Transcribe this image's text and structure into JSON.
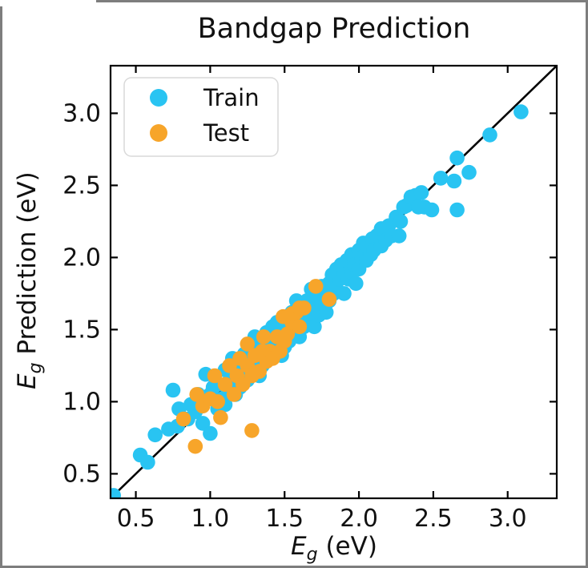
{
  "figure": {
    "title": "Bandgap Prediction",
    "border_color": "#7e7e7e",
    "background": "#ffffff",
    "text_color": "#111111"
  },
  "labels": {
    "e_symbol": "E",
    "e_sub": "g",
    "ylabel_rest": " Prediction (eV)",
    "xlabel_rest": " (eV)"
  },
  "legend": {
    "position": "upper left",
    "border_color": "#d9d9d9",
    "entries": [
      {
        "label": "Train",
        "color": "#29c4f2"
      },
      {
        "label": "Test",
        "color": "#f7a52a"
      }
    ]
  },
  "chart_data": {
    "type": "scatter",
    "title": "Bandgap Prediction",
    "xlabel": "E_g (eV)",
    "ylabel": "E_g Prediction (eV)",
    "xlim": [
      0.33,
      3.33
    ],
    "ylim": [
      0.33,
      3.33
    ],
    "xticks": [
      0.5,
      1.0,
      1.5,
      2.0,
      2.5,
      3.0
    ],
    "yticks": [
      0.5,
      1.0,
      1.5,
      2.0,
      2.5,
      3.0
    ],
    "grid": false,
    "legend_position": "upper left",
    "reference_line": {
      "type": "y=x",
      "color": "#000000",
      "from": 0.33,
      "to": 3.33
    },
    "series": [
      {
        "name": "Train",
        "color": "#29c4f2",
        "points": [
          [
            0.35,
            0.35
          ],
          [
            0.53,
            0.63
          ],
          [
            0.58,
            0.58
          ],
          [
            0.63,
            0.77
          ],
          [
            0.72,
            0.81
          ],
          [
            0.75,
            1.08
          ],
          [
            0.79,
            0.95
          ],
          [
            0.87,
            0.98
          ],
          [
            0.78,
            0.83
          ],
          [
            0.85,
            0.88
          ],
          [
            0.9,
            0.93
          ],
          [
            0.92,
            1.05
          ],
          [
            0.95,
            0.85
          ],
          [
            0.97,
            1.19
          ],
          [
            1.0,
            0.78
          ],
          [
            1.0,
            1.05
          ],
          [
            1.02,
            1.1
          ],
          [
            1.05,
            1.12
          ],
          [
            1.05,
            0.95
          ],
          [
            1.08,
            1.02
          ],
          [
            1.1,
            1.22
          ],
          [
            1.1,
            0.98
          ],
          [
            1.12,
            1.08
          ],
          [
            1.15,
            1.15
          ],
          [
            1.15,
            1.3
          ],
          [
            1.17,
            1.05
          ],
          [
            1.18,
            1.22
          ],
          [
            1.2,
            1.1
          ],
          [
            1.2,
            1.28
          ],
          [
            1.22,
            1.2
          ],
          [
            1.23,
            1.33
          ],
          [
            1.25,
            1.15
          ],
          [
            1.27,
            1.27
          ],
          [
            1.28,
            1.38
          ],
          [
            1.3,
            1.22
          ],
          [
            1.3,
            1.45
          ],
          [
            1.32,
            1.3
          ],
          [
            1.33,
            1.18
          ],
          [
            1.35,
            1.4
          ],
          [
            1.35,
            1.25
          ],
          [
            1.37,
            1.32
          ],
          [
            1.38,
            1.48
          ],
          [
            1.4,
            1.3
          ],
          [
            1.4,
            1.42
          ],
          [
            1.42,
            1.52
          ],
          [
            1.43,
            1.35
          ],
          [
            1.45,
            1.4
          ],
          [
            1.45,
            1.55
          ],
          [
            1.47,
            1.45
          ],
          [
            1.48,
            1.32
          ],
          [
            1.5,
            1.5
          ],
          [
            1.5,
            1.38
          ],
          [
            1.52,
            1.55
          ],
          [
            1.53,
            1.42
          ],
          [
            1.55,
            1.62
          ],
          [
            1.55,
            1.48
          ],
          [
            1.57,
            1.52
          ],
          [
            1.58,
            1.7
          ],
          [
            1.6,
            1.58
          ],
          [
            1.6,
            1.45
          ],
          [
            1.62,
            1.65
          ],
          [
            1.63,
            1.52
          ],
          [
            1.65,
            1.7
          ],
          [
            1.65,
            1.55
          ],
          [
            1.67,
            1.62
          ],
          [
            1.68,
            1.78
          ],
          [
            1.7,
            1.65
          ],
          [
            1.7,
            1.52
          ],
          [
            1.72,
            1.72
          ],
          [
            1.73,
            1.6
          ],
          [
            1.75,
            1.8
          ],
          [
            1.75,
            1.68
          ],
          [
            1.77,
            1.75
          ],
          [
            1.78,
            1.62
          ],
          [
            1.8,
            1.82
          ],
          [
            1.8,
            1.7
          ],
          [
            1.82,
            1.88
          ],
          [
            1.83,
            1.75
          ],
          [
            1.85,
            1.92
          ],
          [
            1.85,
            1.78
          ],
          [
            1.87,
            1.85
          ],
          [
            1.88,
            1.95
          ],
          [
            1.9,
            1.88
          ],
          [
            1.9,
            1.75
          ],
          [
            1.92,
            1.98
          ],
          [
            1.93,
            1.85
          ],
          [
            1.95,
            2.02
          ],
          [
            1.95,
            1.9
          ],
          [
            1.97,
            1.95
          ],
          [
            1.98,
            1.82
          ],
          [
            2.0,
            2.05
          ],
          [
            2.0,
            1.92
          ],
          [
            2.02,
            2.0
          ],
          [
            2.03,
            2.1
          ],
          [
            2.05,
            1.98
          ],
          [
            2.05,
            2.08
          ],
          [
            2.08,
            2.02
          ],
          [
            2.09,
            2.13
          ],
          [
            2.1,
            2.05
          ],
          [
            2.12,
            2.15
          ],
          [
            2.15,
            2.08
          ],
          [
            2.15,
            2.2
          ],
          [
            2.18,
            2.12
          ],
          [
            2.2,
            2.22
          ],
          [
            2.22,
            2.15
          ],
          [
            2.25,
            2.28
          ],
          [
            2.27,
            2.15
          ],
          [
            2.28,
            2.25
          ],
          [
            2.3,
            2.35
          ],
          [
            2.32,
            2.36
          ],
          [
            2.35,
            2.42
          ],
          [
            2.38,
            2.43
          ],
          [
            2.4,
            2.35
          ],
          [
            2.42,
            2.45
          ],
          [
            2.44,
            2.35
          ],
          [
            2.49,
            2.33
          ],
          [
            2.55,
            2.55
          ],
          [
            2.64,
            2.53
          ],
          [
            2.66,
            2.69
          ],
          [
            2.66,
            2.33
          ],
          [
            2.74,
            2.59
          ],
          [
            2.88,
            2.85
          ],
          [
            3.09,
            3.01
          ]
        ]
      },
      {
        "name": "Test",
        "color": "#f7a52a",
        "points": [
          [
            0.9,
            0.69
          ],
          [
            0.82,
            0.88
          ],
          [
            0.91,
            1.05
          ],
          [
            1.03,
            1.18
          ],
          [
            1.07,
            0.89
          ],
          [
            0.95,
            0.97
          ],
          [
            1.0,
            1.02
          ],
          [
            1.05,
            1.0
          ],
          [
            1.1,
            1.12
          ],
          [
            1.13,
            1.25
          ],
          [
            1.16,
            1.05
          ],
          [
            1.18,
            1.18
          ],
          [
            1.2,
            1.3
          ],
          [
            1.22,
            1.12
          ],
          [
            1.25,
            1.25
          ],
          [
            1.25,
            1.4
          ],
          [
            1.28,
            1.18
          ],
          [
            1.28,
            0.8
          ],
          [
            1.3,
            1.32
          ],
          [
            1.33,
            1.21
          ],
          [
            1.35,
            1.35
          ],
          [
            1.36,
            1.45
          ],
          [
            1.38,
            1.28
          ],
          [
            1.4,
            1.35
          ],
          [
            1.42,
            1.3
          ],
          [
            1.45,
            1.45
          ],
          [
            1.47,
            1.35
          ],
          [
            1.49,
            1.59
          ],
          [
            1.5,
            1.42
          ],
          [
            1.52,
            1.47
          ],
          [
            1.55,
            1.55
          ],
          [
            1.55,
            1.61
          ],
          [
            1.58,
            1.62
          ],
          [
            1.6,
            1.52
          ],
          [
            1.6,
            1.65
          ],
          [
            1.63,
            1.65
          ],
          [
            1.71,
            1.8
          ],
          [
            1.8,
            1.71
          ]
        ]
      }
    ]
  }
}
